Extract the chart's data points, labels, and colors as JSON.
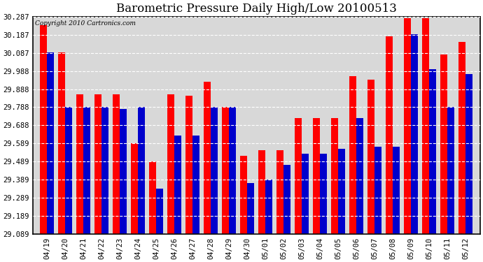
{
  "title": "Barometric Pressure Daily High/Low 20100513",
  "copyright": "Copyright 2010 Cartronics.com",
  "categories": [
    "04/19",
    "04/20",
    "04/21",
    "04/22",
    "04/23",
    "04/24",
    "04/25",
    "04/26",
    "04/27",
    "04/28",
    "04/29",
    "04/30",
    "05/01",
    "05/02",
    "05/03",
    "05/04",
    "05/05",
    "05/06",
    "05/07",
    "05/08",
    "05/09",
    "05/10",
    "05/11",
    "05/12"
  ],
  "high_values": [
    30.24,
    30.09,
    29.86,
    29.86,
    29.86,
    29.59,
    29.49,
    29.86,
    29.85,
    29.93,
    29.79,
    29.52,
    29.55,
    29.55,
    29.73,
    29.73,
    29.73,
    29.96,
    29.94,
    30.18,
    30.28,
    30.28,
    30.08,
    30.15
  ],
  "low_values": [
    30.09,
    29.79,
    29.79,
    29.79,
    29.78,
    29.79,
    29.34,
    29.63,
    29.63,
    29.79,
    29.79,
    29.37,
    29.39,
    29.47,
    29.53,
    29.53,
    29.56,
    29.73,
    29.57,
    29.57,
    30.19,
    30.0,
    29.79,
    29.97
  ],
  "high_color": "#ff0000",
  "low_color": "#0000cc",
  "bg_color": "#ffffff",
  "plot_bg_color": "#d8d8d8",
  "grid_color": "#ffffff",
  "ylim_min": 29.089,
  "ylim_max": 30.287,
  "yticks": [
    29.089,
    29.189,
    29.289,
    29.389,
    29.489,
    29.589,
    29.688,
    29.788,
    29.888,
    29.988,
    30.087,
    30.187,
    30.287
  ],
  "ytick_labels": [
    "29.089",
    "29.189",
    "29.289",
    "29.389",
    "29.489",
    "29.589",
    "29.688",
    "29.788",
    "29.888",
    "29.988",
    "30.087",
    "30.187",
    "30.287"
  ],
  "bar_width": 0.38
}
